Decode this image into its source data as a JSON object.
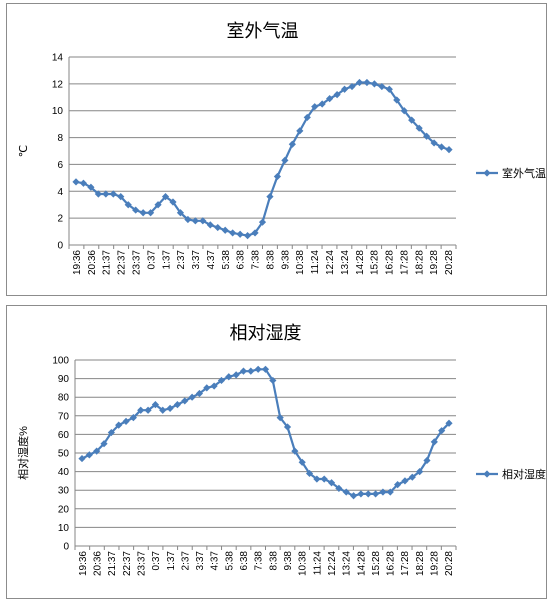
{
  "colors": {
    "series": "#4A7EBB",
    "grid": "#868686",
    "axis": "#868686"
  },
  "x_labels": [
    "19:36",
    "20:36",
    "21:37",
    "22:37",
    "23:37",
    "0:37",
    "1:37",
    "2:37",
    "3:37",
    "4:37",
    "5:38",
    "6:38",
    "7:38",
    "8:38",
    "9:38",
    "10:38",
    "11:24",
    "12:24",
    "13:24",
    "14:28",
    "15:28",
    "16:28",
    "17:28",
    "18:28",
    "19:28",
    "20:28"
  ],
  "chart_data": [
    {
      "type": "line",
      "title": "室外气温",
      "ylabel": "℃",
      "xlabel": "",
      "ylim": [
        0,
        14
      ],
      "yticks": [
        0,
        2,
        4,
        6,
        8,
        10,
        12,
        14
      ],
      "grid": true,
      "legend": "right",
      "series": [
        {
          "name": "室外气温",
          "values": [
            4.7,
            4.6,
            4.3,
            3.8,
            3.8,
            3.8,
            3.6,
            3.0,
            2.6,
            2.4,
            2.4,
            3.0,
            3.6,
            3.2,
            2.4,
            1.9,
            1.8,
            1.8,
            1.5,
            1.3,
            1.1,
            0.9,
            0.8,
            0.7,
            0.9,
            1.7,
            3.6,
            5.1,
            6.3,
            7.5,
            8.5,
            9.5,
            10.3,
            10.5,
            10.9,
            11.2,
            11.6,
            11.8,
            12.1,
            12.1,
            12.0,
            11.8,
            11.6,
            10.8,
            10.0,
            9.3,
            8.7,
            8.1,
            7.6,
            7.3,
            7.1
          ]
        }
      ]
    },
    {
      "type": "line",
      "title": "相对湿度",
      "ylabel": "相对湿度%",
      "xlabel": "",
      "ylim": [
        0,
        100
      ],
      "yticks": [
        0,
        10,
        20,
        30,
        40,
        50,
        60,
        70,
        80,
        90,
        100
      ],
      "grid": true,
      "legend": "right",
      "series": [
        {
          "name": "相对湿度",
          "values": [
            47,
            49,
            51,
            55,
            61,
            65,
            67,
            69,
            73,
            73,
            76,
            73,
            74,
            76,
            78,
            80,
            82,
            85,
            86,
            89,
            91,
            92,
            94,
            94,
            95,
            95,
            89,
            69,
            64,
            51,
            45,
            39,
            36,
            36,
            34,
            31,
            29,
            27,
            28,
            28,
            28,
            29,
            29,
            33,
            35,
            37,
            40,
            46,
            56,
            62,
            66
          ]
        }
      ]
    }
  ]
}
